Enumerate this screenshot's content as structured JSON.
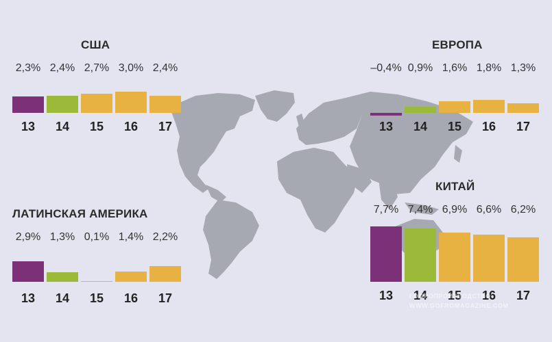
{
  "colors": {
    "background": "#e3e4ef",
    "map": "#a7a9b2",
    "year_2013": "#7c3077",
    "year_2014": "#9cba39",
    "forecast": "#e8b243"
  },
  "watermark": {
    "line1": "ГОФРОПРОИЗВОДСТВО",
    "line2": "WWW.GOFROMAGAZINE.COM"
  },
  "chart_data": [
    {
      "type": "bar",
      "title": "США",
      "categories": [
        "13",
        "14",
        "15",
        "16",
        "17"
      ],
      "values": [
        2.3,
        2.4,
        2.7,
        3.0,
        2.4
      ],
      "labels": [
        "2,3%",
        "2,4%",
        "2,7%",
        "3,0%",
        "2,4%"
      ]
    },
    {
      "type": "bar",
      "title": "ЕВРОПА",
      "categories": [
        "13",
        "14",
        "15",
        "16",
        "17"
      ],
      "values": [
        -0.4,
        0.9,
        1.6,
        1.8,
        1.3
      ],
      "labels": [
        "–0,4%",
        "0,9%",
        "1,6%",
        "1,8%",
        "1,3%"
      ]
    },
    {
      "type": "bar",
      "title": "ЛАТИНСКАЯ АМЕРИКА",
      "categories": [
        "13",
        "14",
        "15",
        "16",
        "17"
      ],
      "values": [
        2.9,
        1.3,
        0.1,
        1.4,
        2.2
      ],
      "labels": [
        "2,9%",
        "1,3%",
        "0,1%",
        "1,4%",
        "2,2%"
      ]
    },
    {
      "type": "bar",
      "title": "КИТАЙ",
      "categories": [
        "13",
        "14",
        "15",
        "16",
        "17"
      ],
      "values": [
        7.7,
        7.4,
        6.9,
        6.6,
        6.2
      ],
      "labels": [
        "7,7%",
        "7,4%",
        "6,9%",
        "6,6%",
        "6,2%"
      ]
    }
  ]
}
